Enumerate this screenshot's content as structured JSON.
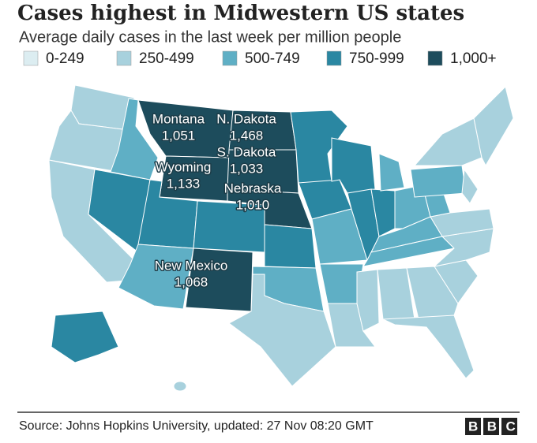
{
  "header": {
    "title": "Cases highest in Midwestern US states",
    "subtitle": "Average daily cases in the last week per million people"
  },
  "legend": [
    {
      "label": "0-249",
      "color": "#dcedf1"
    },
    {
      "label": "250-499",
      "color": "#a8d1dd"
    },
    {
      "label": "500-749",
      "color": "#5fafc5"
    },
    {
      "label": "750-999",
      "color": "#2a87a2"
    },
    {
      "label": "1,000+",
      "color": "#1d4c5c"
    }
  ],
  "states": [
    {
      "name": "Montana",
      "value": "1,051"
    },
    {
      "name": "N. Dakota",
      "value": "1,468"
    },
    {
      "name": "S. Dakota",
      "value": "1,033"
    },
    {
      "name": "Wyoming",
      "value": "1,133"
    },
    {
      "name": "Nebraska",
      "value": "1,010"
    },
    {
      "name": "New Mexico",
      "value": "1,068"
    }
  ],
  "footer": {
    "source": "Source: Johns Hopkins University, updated: 27 Nov 08:20 GMT",
    "logo": "BBC"
  }
}
